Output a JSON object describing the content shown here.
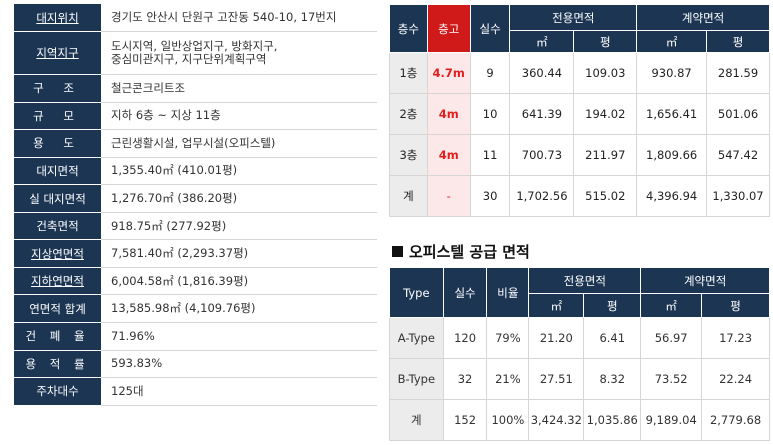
{
  "site_info": [
    {
      "key": "대지위치",
      "value": "경기도 안산시 단원구 고잔동 540-10, 17번지"
    },
    {
      "key": "지역지구",
      "value_line1": "도시지역, 일반상업지구, 방화지구,",
      "value_line2": "중심미관지구, 지구단위계획구역"
    },
    {
      "key": "구 조",
      "value": "철근콘크리트조"
    },
    {
      "key": "규 모",
      "value": "지하 6층 ~ 지상 11층"
    },
    {
      "key": "용 도",
      "value": "근린생활시설, 업무시설(오피스텔)"
    },
    {
      "key": "대지면적",
      "value": "1,355.40㎡ (410.01평)"
    },
    {
      "key": "실 대지면적",
      "value": "1,276.70㎡ (386.20평)"
    },
    {
      "key": "건축면적",
      "value": "918.75㎡ (277.92평)"
    },
    {
      "key": "지상연면적",
      "value": "7,581.40㎡ (2,293.37평)"
    },
    {
      "key": "지하연면적",
      "value": "6,004.58㎡ (1,816.39평)"
    },
    {
      "key": "연면적 합계",
      "value": "13,585.98㎡ (4,109.76평)"
    },
    {
      "key": "건 폐 율",
      "value": "71.96%"
    },
    {
      "key": "용 적 률",
      "value": "593.83%"
    },
    {
      "key": "주차대수",
      "value": "125대"
    }
  ],
  "floor_table": {
    "headers": {
      "floor": "층수",
      "height": "층고",
      "rooms": "실수",
      "exclusive": "전용면적",
      "contract": "계약면적",
      "sqm": "㎡",
      "pyeong": "평"
    },
    "rows": [
      {
        "floor": "1층",
        "height": "4.7m",
        "rooms": "9",
        "ex_sqm": "360.44",
        "ex_py": "109.03",
        "ct_sqm": "930.87",
        "ct_py": "281.59"
      },
      {
        "floor": "2층",
        "height": "4m",
        "rooms": "10",
        "ex_sqm": "641.39",
        "ex_py": "194.02",
        "ct_sqm": "1,656.41",
        "ct_py": "501.06"
      },
      {
        "floor": "3층",
        "height": "4m",
        "rooms": "11",
        "ex_sqm": "700.73",
        "ex_py": "211.97",
        "ct_sqm": "1,809.66",
        "ct_py": "547.42"
      },
      {
        "floor": "계",
        "height": "-",
        "rooms": "30",
        "ex_sqm": "1,702.56",
        "ex_py": "515.02",
        "ct_sqm": "4,396.94",
        "ct_py": "1,330.07"
      }
    ]
  },
  "officetel_title": "오피스텔 공급 면적",
  "officetel_table": {
    "headers": {
      "type": "Type",
      "rooms": "실수",
      "ratio": "비율",
      "exclusive": "전용면적",
      "contract": "계약면적",
      "sqm": "㎡",
      "pyeong": "평"
    },
    "rows": [
      {
        "type": "A-Type",
        "rooms": "120",
        "ratio": "79%",
        "ex_sqm": "21.20",
        "ex_py": "6.41",
        "ct_sqm": "56.97",
        "ct_py": "17.23"
      },
      {
        "type": "B-Type",
        "rooms": "32",
        "ratio": "21%",
        "ex_sqm": "27.51",
        "ex_py": "8.32",
        "ct_sqm": "73.52",
        "ct_py": "22.24"
      },
      {
        "type": "계",
        "rooms": "152",
        "ratio": "100%",
        "ex_sqm": "3,424.32",
        "ex_py": "1,035.86",
        "ct_sqm": "9,189.04",
        "ct_py": "2,779.68"
      }
    ]
  },
  "colors": {
    "header_navy": "#1c3553",
    "highlight_red": "#d01a1a",
    "value_red": "#e21f1f"
  }
}
